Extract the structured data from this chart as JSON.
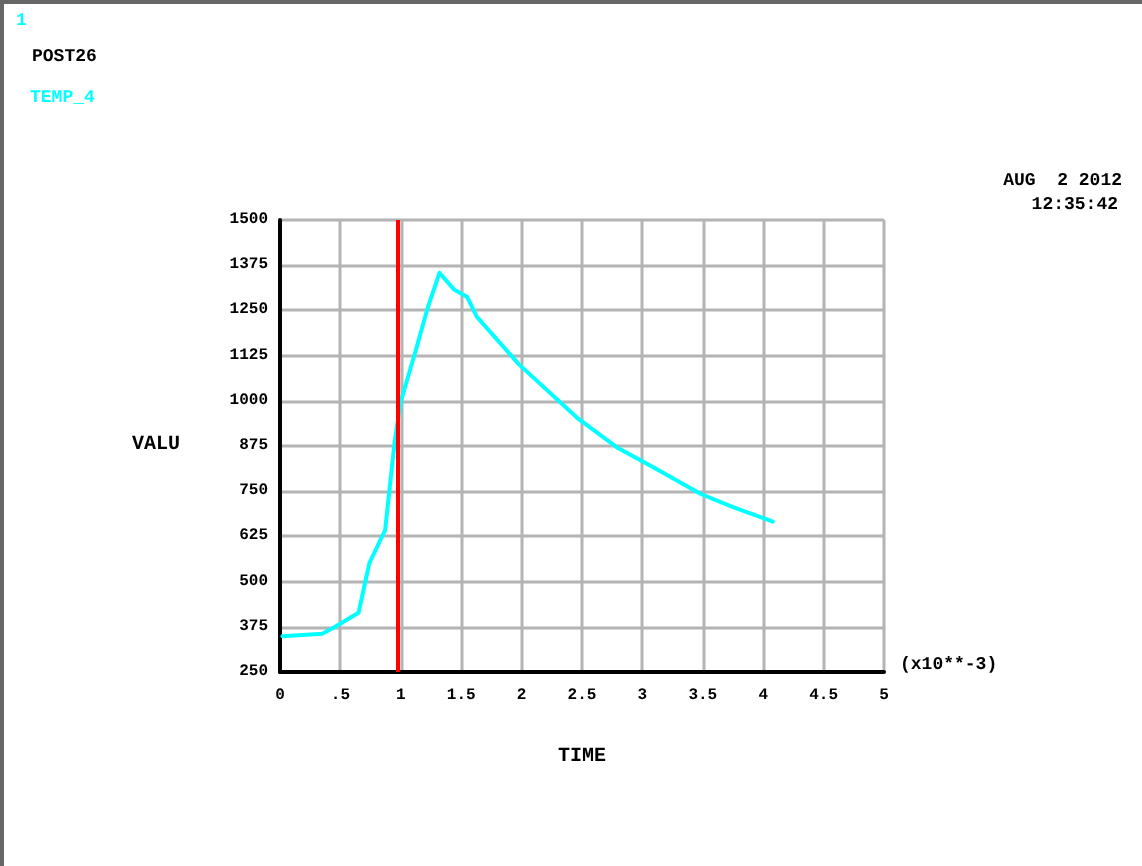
{
  "chart_data": {
    "type": "line",
    "xlabel": "TIME",
    "ylabel": "VALU",
    "annotations": [
      "1",
      "POST26",
      "AUG  2 2012",
      "12:35:42",
      "(x10**-3)"
    ],
    "x": [
      0.02,
      0.35,
      0.45,
      0.65,
      0.74,
      0.87,
      0.95,
      1.0,
      1.12,
      1.22,
      1.32,
      1.44,
      1.55,
      1.63,
      1.98,
      2.46,
      2.79,
      3.09,
      3.48,
      3.75,
      4.08
    ],
    "series": [
      {
        "name": "TEMP_4",
        "color": "#00ffff",
        "values": [
          349,
          356,
          374,
          414,
          551,
          642,
          889,
          998,
          1135,
          1254,
          1354,
          1308,
          1287,
          1232,
          1100,
          953,
          871,
          816,
          743,
          706,
          666
        ]
      }
    ],
    "xlim": [
      0,
      5
    ],
    "xticks": [
      0,
      {
        "value": 0.5,
        "label": ".5"
      },
      1,
      1.5,
      2,
      2.5,
      3,
      3.5,
      4,
      4.5,
      5
    ],
    "ylim": [
      250,
      1500
    ],
    "yticks": [
      250,
      375,
      500,
      625,
      750,
      875,
      1000,
      1125,
      1250,
      1375,
      1500
    ],
    "grid": true,
    "legend": "top left",
    "marker": "none",
    "line_style": "solid",
    "ref_lines": [
      {
        "axis": "x",
        "value": 0.97,
        "color": "#ff0000"
      }
    ]
  }
}
